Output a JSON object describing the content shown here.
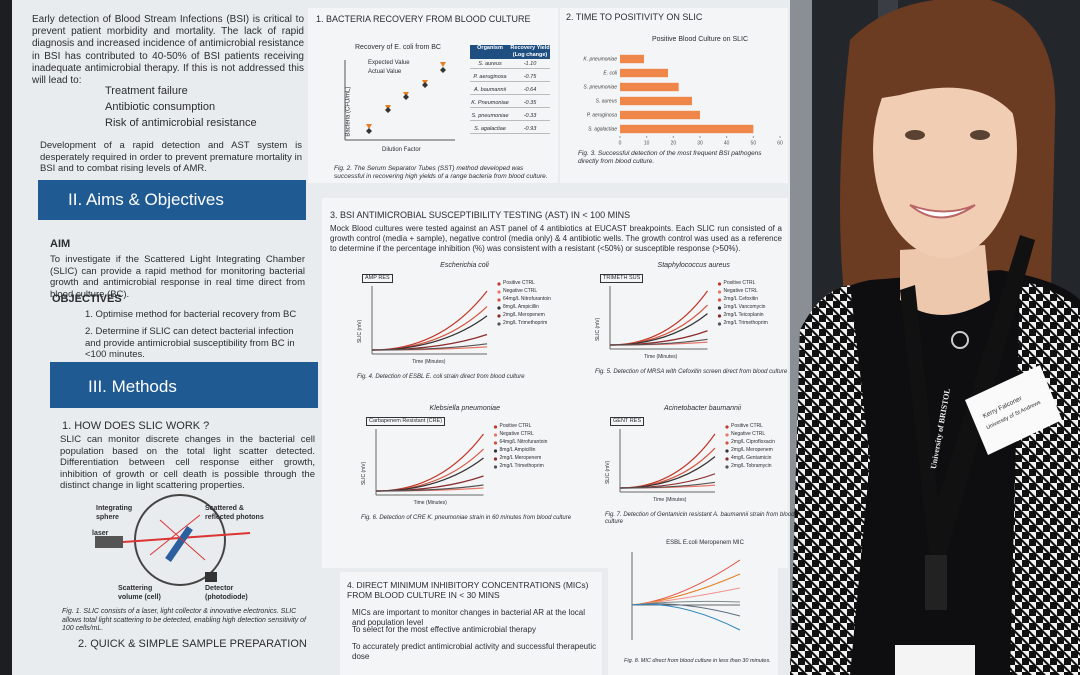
{
  "intro": {
    "text": "Early detection of Blood Stream Infections (BSI) is critical to prevent patient morbidity and mortality. The lack of rapid diagnosis and increased incidence of antimicrobial resistance in BSI has contributed to 40-50% of BSI patients receiving inadequate antimicrobial therapy. If this is not addressed this will lead to:",
    "bullets": [
      "Treatment failure",
      "Antibiotic consumption",
      "Risk of antimicrobial resistance"
    ],
    "closing": "Development of a rapid detection and AST system is desperately required in order to prevent premature mortality in BSI and to combat rising levels of AMR."
  },
  "aims": {
    "heading": "II.  Aims & Objectives",
    "aim_label": "AIM",
    "aim_text": "To investigate if the Scattered Light Integrating Chamber (SLIC) can provide a rapid method for monitoring bacterial growth and antimicrobial response in real time direct from blood culture (BC).",
    "objectives_label": "OBJECTIVES",
    "objectives": [
      "1.  Optimise method for bacterial recovery from BC",
      "2.  Determine if SLIC can detect bacterial infection and provide antimicrobial susceptibility from BC in <100 minutes."
    ]
  },
  "methods": {
    "heading": "III.  Methods",
    "sub1": "1. HOW DOES SLIC WORK ?",
    "text": "SLIC can monitor discrete changes in the bacterial cell population based on the total light scatter detected. Differentiation between cell response either growth, inhibition of growth or cell death is possible through the distinct change in light scattering properties.",
    "diagram_labels": [
      "Integrating sphere",
      "Scattered & reflected photons",
      "laser",
      "Scattering volume (cell)",
      "Detector (photodiode)"
    ],
    "caption": "Fig. 1. SLIC consists of a laser, light collector & innovative electronics. SLIC allows total light scattering to be detected, enabling high detection sensitivity of 100 cells/mL.",
    "sub2": "2. QUICK & SIMPLE SAMPLE PREPARATION"
  },
  "recovery": {
    "heading": "1. BACTERIA RECOVERY FROM BLOOD CULTURE",
    "chart_title": "Recovery of E. coli from BC",
    "legend": [
      "Expected Value",
      "Actual Value"
    ],
    "x_label": "Dilution Factor",
    "y_label": "Bacteria (CFU/mL)",
    "table": {
      "header": [
        "Organism",
        "Recovery Yield (Log change)"
      ],
      "rows": [
        [
          "S. aureus",
          "-1.10"
        ],
        [
          "P. aeruginosa",
          "-0.75"
        ],
        [
          "A. baumannii",
          "-0.64"
        ],
        [
          "K. Pneumoniae",
          "-0.35"
        ],
        [
          "S. pneumoniae",
          "-0.33"
        ],
        [
          "S. agalactiae",
          "-0.93"
        ]
      ]
    },
    "caption": "Fig. 2. The Serum Separator Tubes (SST) method developed was successful in recovering high yields of a range bacteria from blood culture."
  },
  "ttp": {
    "heading": "2. TIME TO POSITIVITY ON SLIC",
    "chart": {
      "type": "bar",
      "title": "Positive Blood Culture on SLIC",
      "categories": [
        "K. pneumoniae",
        "E. coli",
        "S. pneumoniae",
        "S. aureus",
        "P. aeruginosa",
        "S. agalactiae"
      ],
      "values": [
        9,
        18,
        22,
        27,
        30,
        50
      ],
      "xlim": [
        0,
        60
      ],
      "xticks": [
        0,
        10,
        20,
        30,
        40,
        50,
        60
      ],
      "color": "#f0874a"
    },
    "caption": "Fig. 3. Successful detection of the most frequent BSI pathogens directly from blood culture."
  },
  "ast": {
    "heading": "3. BSI ANTIMICROBIAL SUSCEPTIBILITY TESTING (AST) IN < 100 MINS",
    "text": "Mock Blood cultures were tested against an AST panel of 4 antibiotics at EUCAST breakpoints. Each SLIC run consisted of a growth control (media + sample), negative control (media only) & 4 antibiotic wells. The growth control was used as a reference to determine if the percentage inhibition (%) was consistent with a resistant (<50%) or susceptible response (>50%).",
    "panels": [
      {
        "title": "Escherichia coli",
        "tag": "AMP RES",
        "x_label": "Time (Minutes)",
        "y_label": "SLIC (mV)",
        "legend": [
          "Positive CTRL",
          "Negative CTRL",
          "64mg/L Nitrofurantoin",
          "8mg/L Ampicillin",
          "2mg/L Meropenem",
          "2mg/L Trimethoprim"
        ],
        "caption": "Fig. 4. Detection of ESBL E. coli strain direct from blood culture"
      },
      {
        "title": "Staphylococcus aureus",
        "tag": "TRIMETH SUS",
        "x_label": "Time (Minutes)",
        "y_label": "SLIC (mV)",
        "legend": [
          "Positive CTRL",
          "Negative CTRL",
          "2mg/L Cefoxitin",
          "1mg/L Vancomycin",
          "2mg/L Teicoplanin",
          "2mg/L Trimethoprim"
        ],
        "caption": "Fig. 5. Detection of MRSA with Cefoxitin screen direct from blood culture"
      },
      {
        "title": "Klebsiella pneumoniae",
        "tag": "Carbapenem Resistant (CRE)",
        "x_label": "Time (Minutes)",
        "y_label": "SLIC (mV)",
        "legend": [
          "Positive CTRL",
          "Negative CTRL",
          "64mg/L Nitrofurantoin",
          "8mg/L Ampicillin",
          "2mg/L Meropenem",
          "2mg/L Trimethoprim"
        ],
        "caption": "Fig. 6. Detection of CRE K. pneumoniae strain in 60 minutes from blood culture"
      },
      {
        "title": "Acinetobacter baumannii",
        "tag": "GENT RES",
        "x_label": "Time (Minutes)",
        "y_label": "SLIC (mV)",
        "legend": [
          "Positive CTRL",
          "Negative CTRL",
          "2mg/L Ciprofloxacin",
          "2mg/L Meropenem",
          "4mg/L Gentamicin",
          "2mg/L Tobramycin"
        ],
        "caption": "Fig. 7. Detection of Gentamicin resistant A. baumannii strain from blood culture"
      }
    ]
  },
  "mic": {
    "heading": "4. DIRECT MINIMUM INHIBITORY CONCENTRATIONS (MICs) FROM BLOOD CULTURE IN < 30 MINS",
    "bullets": [
      "MICs are important to monitor changes in bacterial AR at the local and population level",
      "To select for the most effective antimicrobial therapy",
      "To accurately predict antimicrobial activity and successful therapeutic dose"
    ],
    "chart_title": "ESBL E.coli Meropenem MIC",
    "caption": "Fig. 8. MIC direct from blood culture in less than 30 minutes."
  },
  "badge": {
    "name": "Kerry Falconer",
    "org": "University of St Andrews"
  },
  "lanyard": "University of BRISTOL"
}
